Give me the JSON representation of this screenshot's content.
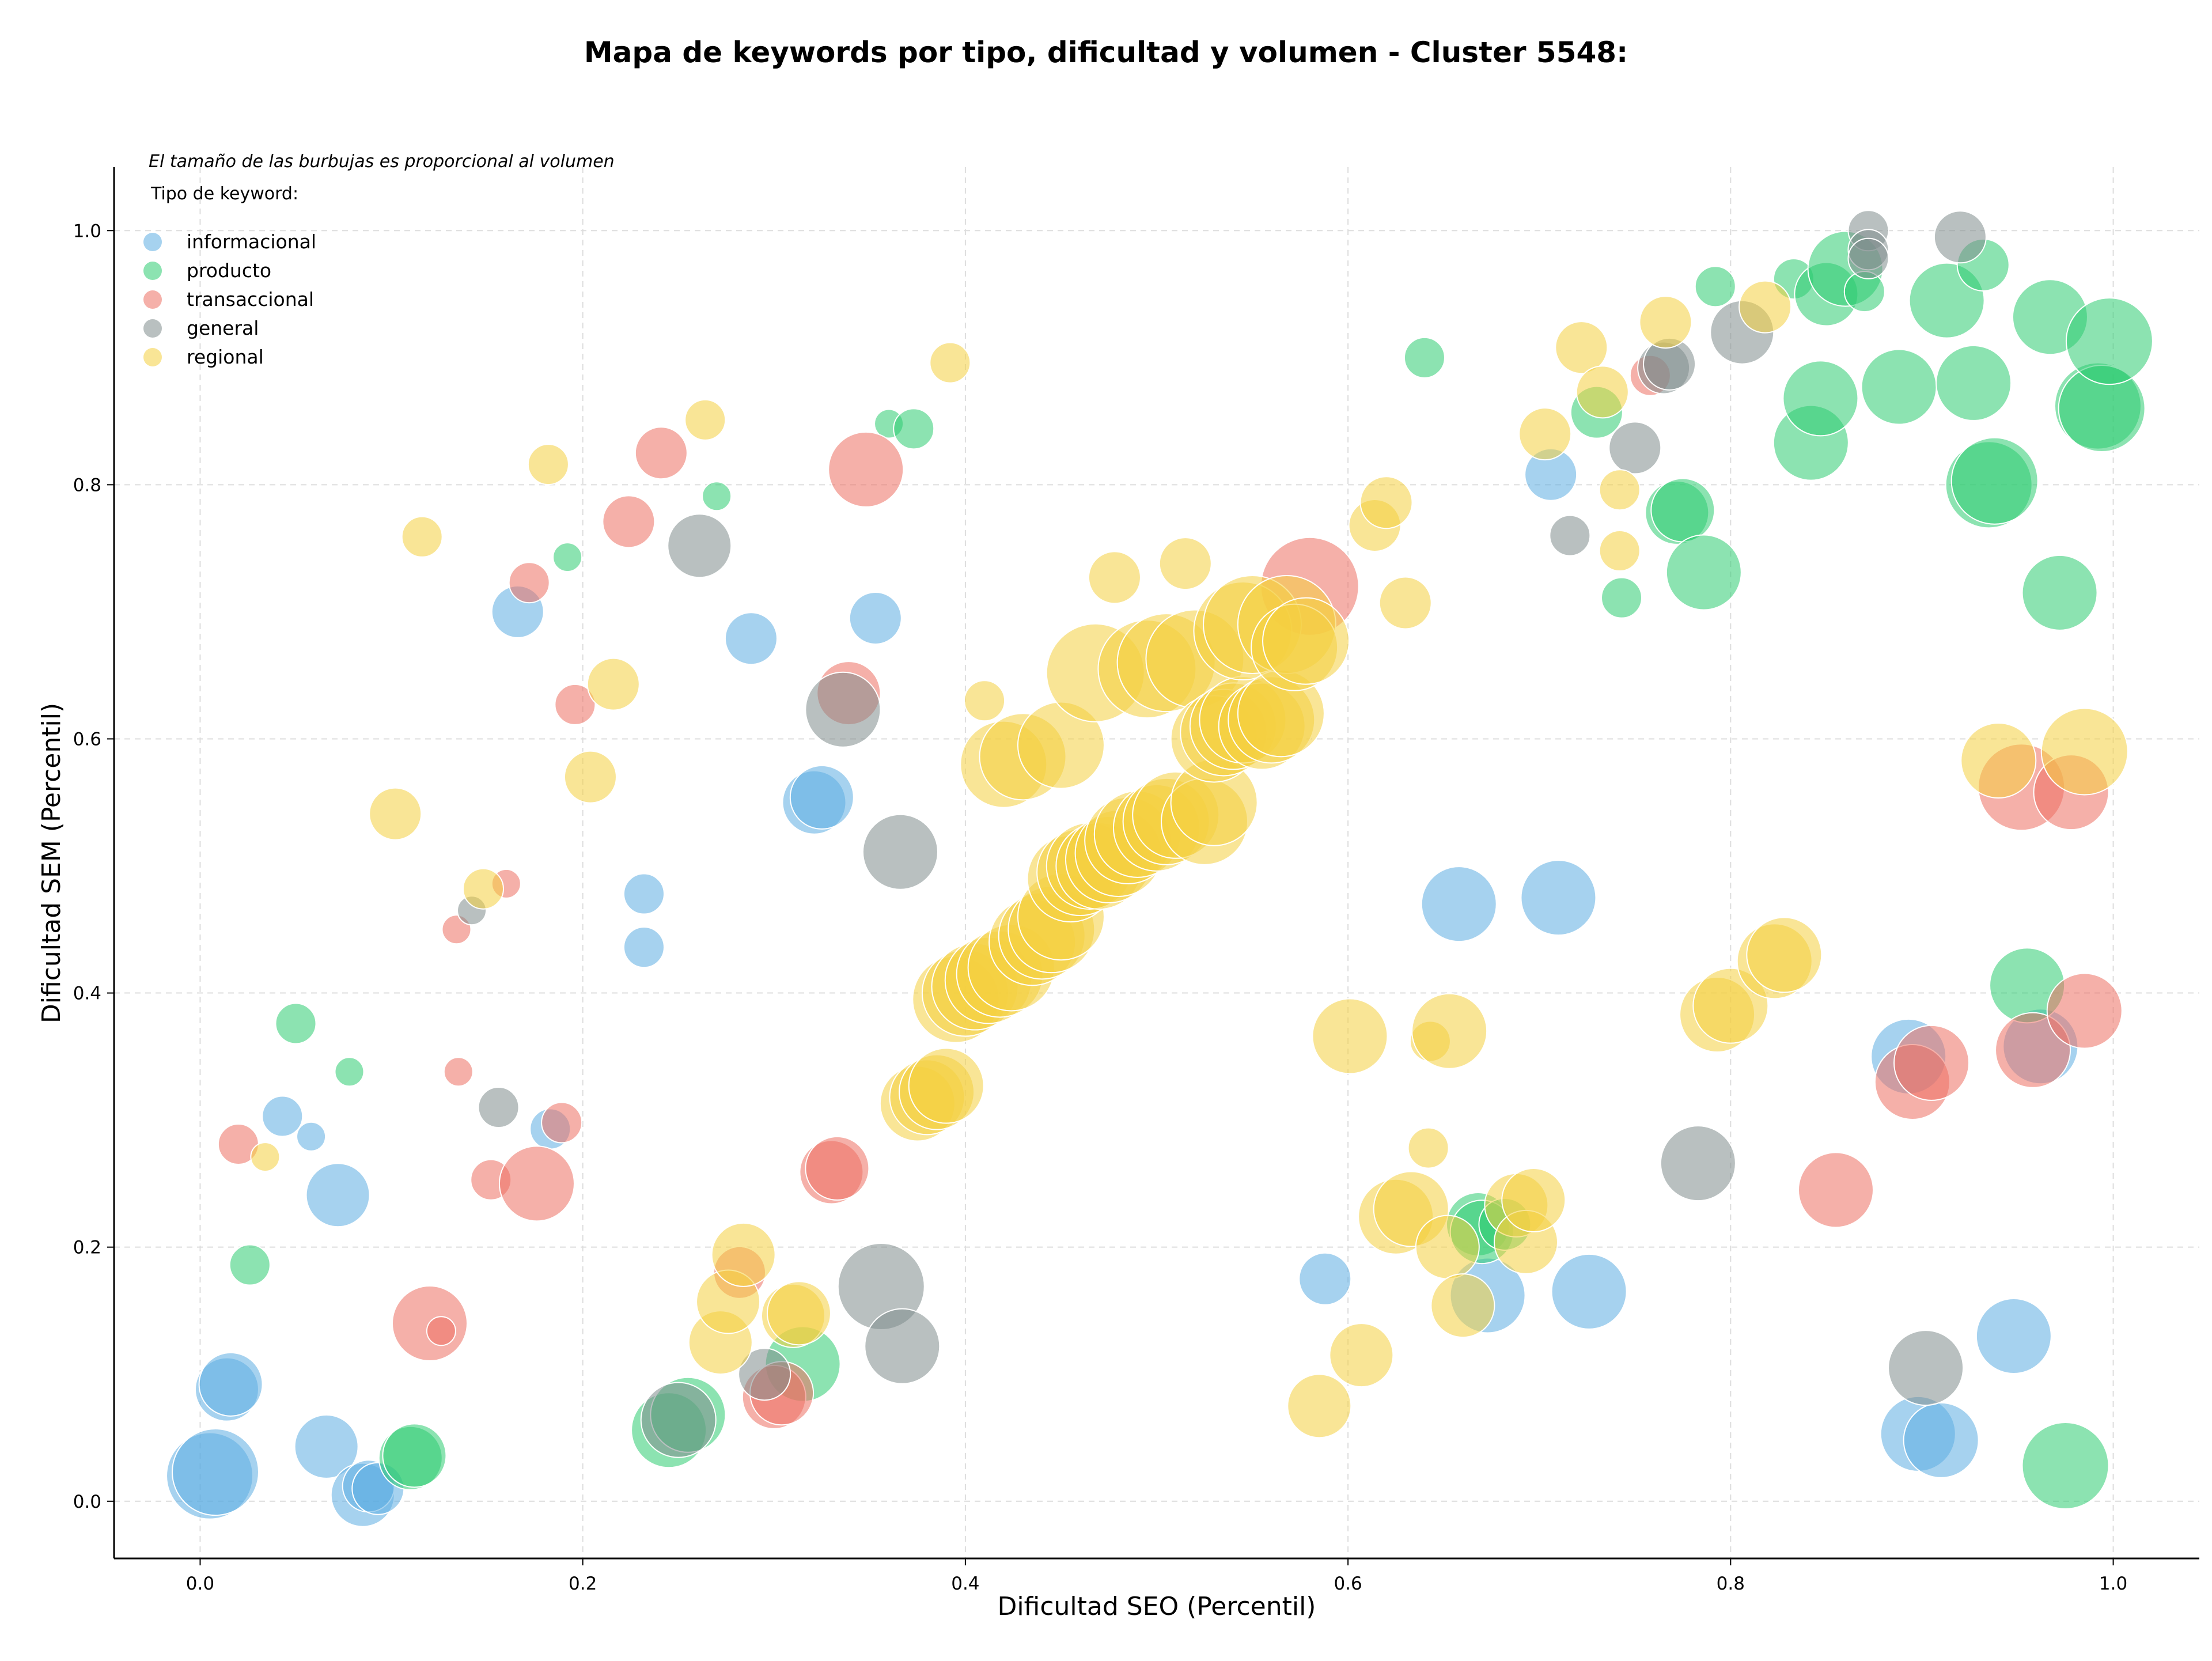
{
  "chart_data": {
    "type": "scatter",
    "title": "Mapa de keywords por tipo, dificultad y volumen - Cluster 5548:",
    "xlabel": "Dificultad SEO (Percentil)",
    "ylabel": "Dificultad SEM (Percentil)",
    "xlim": [
      -0.045,
      1.045
    ],
    "ylim": [
      -0.045,
      1.05
    ],
    "xticks": [
      "0.0",
      "0.2",
      "0.4",
      "0.6",
      "0.8",
      "1.0"
    ],
    "yticks": [
      "0.0",
      "0.2",
      "0.4",
      "0.6",
      "0.8",
      "1.0"
    ],
    "grid": true,
    "legend_position": "top-left",
    "legend_note": "El tamaño de las burbujas es proporcional al volumen",
    "legend_title": "Tipo de keyword:",
    "series": [
      {
        "name": "informacional",
        "color": "#5dade2",
        "points": [
          [
            0.005,
            0.02,
            3
          ],
          [
            0.008,
            0.023,
            3
          ],
          [
            0.014,
            0.088,
            2
          ],
          [
            0.016,
            0.092,
            2
          ],
          [
            0.043,
            0.303,
            1
          ],
          [
            0.058,
            0.287,
            0.5
          ],
          [
            0.066,
            0.043,
            2
          ],
          [
            0.072,
            0.241,
            2
          ],
          [
            0.085,
            0.005,
            2
          ],
          [
            0.088,
            0.012,
            1.5
          ],
          [
            0.093,
            0.01,
            1.5
          ],
          [
            0.166,
            0.7,
            1.5
          ],
          [
            0.183,
            0.293,
            1
          ],
          [
            0.232,
            0.478,
            1
          ],
          [
            0.232,
            0.436,
            1
          ],
          [
            0.288,
            0.679,
            1.5
          ],
          [
            0.321,
            0.55,
            2
          ],
          [
            0.325,
            0.554,
            2
          ],
          [
            0.353,
            0.695,
            1.5
          ],
          [
            0.588,
            0.175,
            1.5
          ],
          [
            0.658,
            0.47,
            2.5
          ],
          [
            0.673,
            0.162,
            2.5
          ],
          [
            0.706,
            0.808,
            1.5
          ],
          [
            0.71,
            0.475,
            2.5
          ],
          [
            0.726,
            0.165,
            2.5
          ],
          [
            0.893,
            0.35,
            2.5
          ],
          [
            0.898,
            0.053,
            2.5
          ],
          [
            0.91,
            0.048,
            2.5
          ],
          [
            0.948,
            0.13,
            2.5
          ],
          [
            0.962,
            0.358,
            2.5
          ]
        ]
      },
      {
        "name": "producto",
        "color": "#2ecc71",
        "points": [
          [
            0.026,
            0.186,
            1
          ],
          [
            0.05,
            0.376,
            1
          ],
          [
            0.078,
            0.338,
            0.5
          ],
          [
            0.11,
            0.034,
            2
          ],
          [
            0.112,
            0.036,
            2
          ],
          [
            0.192,
            0.743,
            0.5
          ],
          [
            0.27,
            0.791,
            0.5
          ],
          [
            0.36,
            0.848,
            0.5
          ],
          [
            0.373,
            0.844,
            1
          ],
          [
            0.245,
            0.056,
            2.5
          ],
          [
            0.255,
            0.068,
            2.5
          ],
          [
            0.315,
            0.108,
            2.5
          ],
          [
            0.64,
            0.9,
            1
          ],
          [
            0.668,
            0.218,
            2
          ],
          [
            0.67,
            0.212,
            2
          ],
          [
            0.682,
            0.218,
            1.5
          ],
          [
            0.73,
            0.857,
            1.5
          ],
          [
            0.743,
            0.711,
            1
          ],
          [
            0.772,
            0.778,
            2
          ],
          [
            0.775,
            0.78,
            2
          ],
          [
            0.786,
            0.731,
            2.5
          ],
          [
            0.792,
            0.956,
            1
          ],
          [
            0.833,
            0.962,
            1
          ],
          [
            0.842,
            0.833,
            2.5
          ],
          [
            0.847,
            0.868,
            2.5
          ],
          [
            0.85,
            0.95,
            2
          ],
          [
            0.86,
            0.97,
            2.5
          ],
          [
            0.87,
            0.952,
            1
          ],
          [
            0.888,
            0.877,
            2.5
          ],
          [
            0.913,
            0.945,
            2.5
          ],
          [
            0.927,
            0.88,
            2.5
          ],
          [
            0.932,
            0.973,
            1.5
          ],
          [
            0.935,
            0.8,
            3
          ],
          [
            0.938,
            0.803,
            3
          ],
          [
            0.955,
            0.406,
            2.5
          ],
          [
            0.967,
            0.932,
            2.5
          ],
          [
            0.972,
            0.715,
            2.5
          ],
          [
            0.975,
            0.028,
            3
          ],
          [
            0.992,
            0.862,
            3
          ],
          [
            0.994,
            0.86,
            3
          ],
          [
            0.998,
            0.913,
            3
          ]
        ]
      },
      {
        "name": "transaccional",
        "color": "#ec7063",
        "points": [
          [
            0.02,
            0.281,
            1
          ],
          [
            0.12,
            0.14,
            2.5
          ],
          [
            0.126,
            0.134,
            0.5
          ],
          [
            0.134,
            0.45,
            0.5
          ],
          [
            0.135,
            0.338,
            0.5
          ],
          [
            0.152,
            0.253,
            1
          ],
          [
            0.16,
            0.486,
            0.5
          ],
          [
            0.172,
            0.723,
            1
          ],
          [
            0.176,
            0.25,
            2.5
          ],
          [
            0.189,
            0.298,
            1
          ],
          [
            0.196,
            0.627,
            1
          ],
          [
            0.224,
            0.771,
            1.5
          ],
          [
            0.241,
            0.825,
            1.5
          ],
          [
            0.282,
            0.18,
            1.5
          ],
          [
            0.3,
            0.082,
            2
          ],
          [
            0.304,
            0.085,
            2
          ],
          [
            0.33,
            0.259,
            2
          ],
          [
            0.333,
            0.262,
            2
          ],
          [
            0.339,
            0.636,
            2
          ],
          [
            0.348,
            0.812,
            2.5
          ],
          [
            0.58,
            0.72,
            3.5
          ],
          [
            0.758,
            0.886,
            1
          ],
          [
            0.855,
            0.245,
            2.5
          ],
          [
            0.895,
            0.33,
            2.5
          ],
          [
            0.905,
            0.345,
            2.5
          ],
          [
            0.952,
            0.562,
            3
          ],
          [
            0.958,
            0.355,
            2.5
          ],
          [
            0.978,
            0.558,
            2.5
          ],
          [
            0.985,
            0.386,
            2.5
          ]
        ]
      },
      {
        "name": "general",
        "color": "#7f8c8d",
        "points": [
          [
            0.142,
            0.465,
            0.5
          ],
          [
            0.156,
            0.31,
            1
          ],
          [
            0.261,
            0.752,
            2
          ],
          [
            0.295,
            0.1,
            1.5
          ],
          [
            0.25,
            0.064,
            2.5
          ],
          [
            0.336,
            0.623,
            2.5
          ],
          [
            0.356,
            0.169,
            3
          ],
          [
            0.366,
            0.511,
            2.5
          ],
          [
            0.367,
            0.122,
            2.5
          ],
          [
            0.716,
            0.76,
            1
          ],
          [
            0.75,
            0.829,
            1.5
          ],
          [
            0.765,
            0.892,
            1.5
          ],
          [
            0.768,
            0.895,
            1.5
          ],
          [
            0.783,
            0.266,
            2.5
          ],
          [
            0.806,
            0.92,
            2
          ],
          [
            0.872,
            1.0,
            1
          ],
          [
            0.872,
            0.985,
            1
          ],
          [
            0.872,
            0.978,
            1
          ],
          [
            0.902,
            0.105,
            2.5
          ],
          [
            0.92,
            0.995,
            1.5
          ]
        ]
      },
      {
        "name": "regional",
        "color": "#f4d03f",
        "points": [
          [
            0.034,
            0.271,
            0.5
          ],
          [
            0.102,
            0.541,
            1.5
          ],
          [
            0.116,
            0.759,
            1
          ],
          [
            0.148,
            0.482,
            1
          ],
          [
            0.182,
            0.816,
            1
          ],
          [
            0.204,
            0.57,
            1.5
          ],
          [
            0.216,
            0.643,
            1.5
          ],
          [
            0.264,
            0.851,
            1
          ],
          [
            0.272,
            0.125,
            2
          ],
          [
            0.276,
            0.157,
            2
          ],
          [
            0.284,
            0.194,
            2
          ],
          [
            0.31,
            0.146,
            2
          ],
          [
            0.313,
            0.148,
            2
          ],
          [
            0.375,
            0.313,
            2.5
          ],
          [
            0.38,
            0.318,
            2.5
          ],
          [
            0.385,
            0.322,
            2.5
          ],
          [
            0.39,
            0.327,
            2.5
          ],
          [
            0.392,
            0.896,
            1
          ],
          [
            0.395,
            0.395,
            3
          ],
          [
            0.4,
            0.4,
            3
          ],
          [
            0.405,
            0.405,
            3
          ],
          [
            0.41,
            0.63,
            1
          ],
          [
            0.412,
            0.41,
            3
          ],
          [
            0.418,
            0.415,
            3
          ],
          [
            0.42,
            0.58,
            3
          ],
          [
            0.424,
            0.42,
            3
          ],
          [
            0.43,
            0.586,
            3
          ],
          [
            0.435,
            0.44,
            3
          ],
          [
            0.44,
            0.445,
            3
          ],
          [
            0.445,
            0.45,
            3
          ],
          [
            0.45,
            0.46,
            3
          ],
          [
            0.45,
            0.595,
            3
          ],
          [
            0.455,
            0.49,
            3
          ],
          [
            0.46,
            0.495,
            3
          ],
          [
            0.465,
            0.5,
            3
          ],
          [
            0.468,
            0.652,
            3.5
          ],
          [
            0.47,
            0.5,
            3
          ],
          [
            0.475,
            0.505,
            3
          ],
          [
            0.478,
            0.727,
            1.5
          ],
          [
            0.48,
            0.51,
            3
          ],
          [
            0.485,
            0.52,
            3
          ],
          [
            0.49,
            0.525,
            3
          ],
          [
            0.495,
            0.655,
            3.5
          ],
          [
            0.5,
            0.53,
            3
          ],
          [
            0.505,
            0.535,
            3
          ],
          [
            0.505,
            0.66,
            3.5
          ],
          [
            0.51,
            0.54,
            3
          ],
          [
            0.515,
            0.738,
            1.5
          ],
          [
            0.52,
            0.663,
            3.5
          ],
          [
            0.525,
            0.535,
            3
          ],
          [
            0.53,
            0.55,
            3
          ],
          [
            0.53,
            0.6,
            3
          ],
          [
            0.535,
            0.605,
            3
          ],
          [
            0.54,
            0.61,
            3
          ],
          [
            0.545,
            0.615,
            3
          ],
          [
            0.545,
            0.685,
            3.5
          ],
          [
            0.55,
            0.69,
            3.5
          ],
          [
            0.555,
            0.61,
            3
          ],
          [
            0.56,
            0.615,
            3
          ],
          [
            0.565,
            0.62,
            3
          ],
          [
            0.568,
            0.69,
            3.5
          ],
          [
            0.572,
            0.672,
            3
          ],
          [
            0.578,
            0.677,
            3
          ],
          [
            0.585,
            0.075,
            2
          ],
          [
            0.601,
            0.366,
            2.5
          ],
          [
            0.607,
            0.115,
            2
          ],
          [
            0.614,
            0.768,
            1.5
          ],
          [
            0.62,
            0.786,
            1.5
          ],
          [
            0.625,
            0.224,
            2.5
          ],
          [
            0.63,
            0.707,
            1.5
          ],
          [
            0.633,
            0.23,
            2.5
          ],
          [
            0.642,
            0.278,
            1
          ],
          [
            0.643,
            0.362,
            1
          ],
          [
            0.652,
            0.2,
            2
          ],
          [
            0.653,
            0.37,
            2.5
          ],
          [
            0.66,
            0.154,
            2
          ],
          [
            0.688,
            0.233,
            2
          ],
          [
            0.693,
            0.204,
            2
          ],
          [
            0.697,
            0.237,
            2
          ],
          [
            0.703,
            0.84,
            1.5
          ],
          [
            0.722,
            0.908,
            1.5
          ],
          [
            0.733,
            0.873,
            1.5
          ],
          [
            0.742,
            0.748,
            1
          ],
          [
            0.742,
            0.796,
            1
          ],
          [
            0.766,
            0.928,
            1.5
          ],
          [
            0.793,
            0.383,
            2.5
          ],
          [
            0.8,
            0.39,
            2.5
          ],
          [
            0.818,
            0.94,
            1.5
          ],
          [
            0.823,
            0.425,
            2.5
          ],
          [
            0.828,
            0.43,
            2.5
          ],
          [
            0.94,
            0.583,
            2.5
          ],
          [
            0.985,
            0.59,
            3
          ]
        ]
      }
    ]
  }
}
